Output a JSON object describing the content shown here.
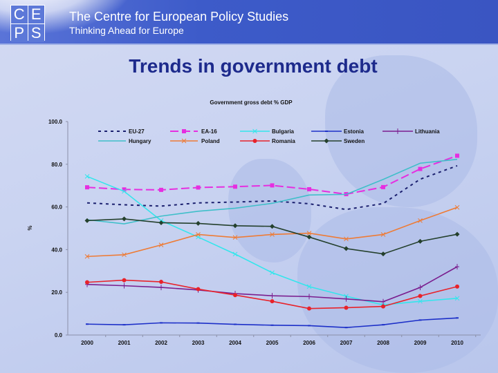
{
  "header": {
    "logo_letters": [
      "C",
      "E",
      "P",
      "S"
    ],
    "org_name": "The Centre for European Policy Studies",
    "tagline": "Thinking Ahead for Europe"
  },
  "slide_title": "Trends in government debt",
  "chart_data": {
    "type": "line",
    "title": "Government gross debt % GDP",
    "xlabel": "",
    "ylabel": "%",
    "ylim": [
      0,
      100
    ],
    "yticks": [
      "0.0",
      "20.0",
      "40.0",
      "60.0",
      "80.0",
      "100.0"
    ],
    "x": [
      "2000",
      "2001",
      "2002",
      "2003",
      "2004",
      "2005",
      "2006",
      "2007",
      "2008",
      "2009",
      "2010"
    ],
    "legend": "top",
    "series": [
      {
        "name": "EU-27",
        "color": "#1a1f6e",
        "style": "dotted",
        "marker": "none",
        "values": [
          61.9,
          61.0,
          60.4,
          61.9,
          62.3,
          62.8,
          61.5,
          58.8,
          61.6,
          73.0,
          79.3
        ]
      },
      {
        "name": "EA-16",
        "color": "#e62ee0",
        "style": "dashed",
        "marker": "square",
        "values": [
          69.2,
          68.2,
          68.0,
          69.1,
          69.5,
          70.1,
          68.3,
          66.0,
          69.3,
          77.8,
          84.0
        ]
      },
      {
        "name": "Bulgaria",
        "color": "#33e6ec",
        "style": "solid",
        "marker": "x",
        "values": [
          74.3,
          67.3,
          53.6,
          45.9,
          37.9,
          29.2,
          22.7,
          18.2,
          14.1,
          15.8,
          17.2
        ]
      },
      {
        "name": "Estonia",
        "color": "#1c2fc8",
        "style": "solid",
        "marker": "dash",
        "values": [
          5.1,
          4.8,
          5.7,
          5.6,
          5.0,
          4.6,
          4.4,
          3.5,
          4.8,
          7.0,
          8.0
        ]
      },
      {
        "name": "Lithuania",
        "color": "#7a1d8e",
        "style": "solid",
        "marker": "plus",
        "values": [
          23.7,
          23.1,
          22.3,
          21.1,
          19.4,
          18.4,
          18.0,
          16.9,
          15.6,
          22.3,
          32.0
        ]
      },
      {
        "name": "Hungary",
        "color": "#3fbfc9",
        "style": "solid",
        "marker": "none",
        "values": [
          54.0,
          52.1,
          55.7,
          58.0,
          59.4,
          61.7,
          65.6,
          65.9,
          72.9,
          80.5,
          82.3
        ]
      },
      {
        "name": "Poland",
        "color": "#ee7b35",
        "style": "solid",
        "marker": "x",
        "values": [
          36.8,
          37.6,
          42.2,
          47.1,
          45.7,
          47.1,
          47.7,
          45.0,
          47.1,
          53.6,
          59.8
        ]
      },
      {
        "name": "Romania",
        "color": "#e8222a",
        "style": "solid",
        "marker": "circle",
        "values": [
          24.7,
          25.7,
          24.9,
          21.5,
          18.7,
          15.8,
          12.4,
          12.8,
          13.4,
          18.3,
          22.7
        ]
      },
      {
        "name": "Sweden",
        "color": "#24402c",
        "style": "solid",
        "marker": "diamond",
        "values": [
          53.6,
          54.4,
          52.6,
          52.3,
          51.2,
          50.9,
          45.9,
          40.5,
          38.0,
          43.9,
          47.2
        ]
      }
    ]
  }
}
